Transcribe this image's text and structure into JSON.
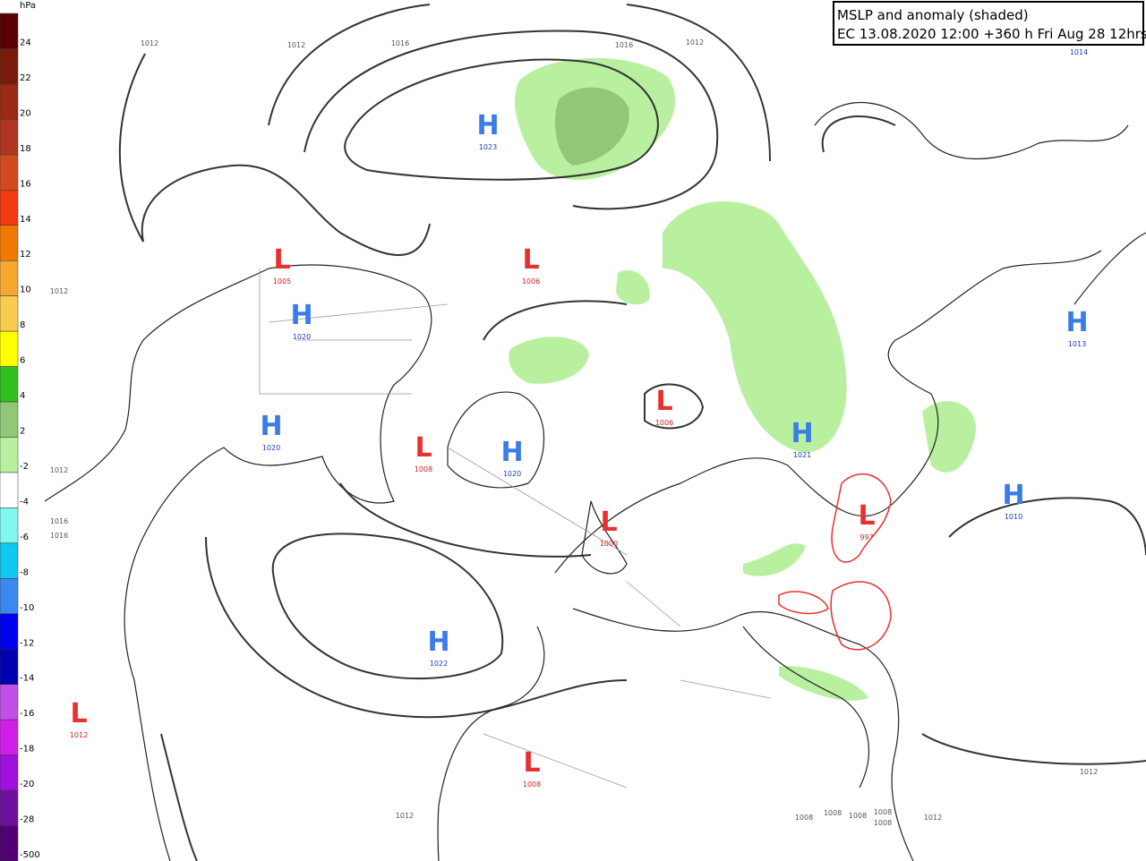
{
  "header": {
    "lines": [
      "MSLP and anomaly (shaded)",
      "EC 13.08.2020 12:00 +360 h Fri Aug 28 12hrs"
    ]
  },
  "colorbar": {
    "unit": "hPa",
    "labels": [
      "24",
      "22",
      "20",
      "18",
      "16",
      "14",
      "12",
      "10",
      "8",
      "6",
      "4",
      "2",
      "-2",
      "-4",
      "-6",
      "-8",
      "-10",
      "-12",
      "-14",
      "-16",
      "-18",
      "-20",
      "-28",
      "-500"
    ],
    "colors": [
      "#5a0000",
      "#7a1a0a",
      "#9a2a15",
      "#b03520",
      "#d04a20",
      "#f03a10",
      "#f07a00",
      "#f4a830",
      "#f8cc50",
      "#ffff00",
      "#30c020",
      "#90c878",
      "#b8f0a0",
      "#ffffff",
      "#80f8f0",
      "#10c8f0",
      "#3a88f0",
      "#0000f0",
      "#0000b0",
      "#c050e8",
      "#d020e8",
      "#a010e0",
      "#7010a0",
      "#500070"
    ]
  },
  "centers": [
    {
      "type": "H",
      "value": "1023"
    },
    {
      "type": "L",
      "value": "1005"
    },
    {
      "type": "L",
      "value": "1006"
    },
    {
      "type": "H",
      "value": "1020"
    },
    {
      "type": "H",
      "value": "1020"
    },
    {
      "type": "L",
      "value": "1008"
    },
    {
      "type": "H",
      "value": "1020"
    },
    {
      "type": "L",
      "value": "1006"
    },
    {
      "type": "L",
      "value": "1000"
    },
    {
      "type": "H",
      "value": "1021"
    },
    {
      "type": "L",
      "value": "997"
    },
    {
      "type": "H",
      "value": "1010"
    },
    {
      "type": "H",
      "value": "1013"
    },
    {
      "type": "H",
      "value": "1022"
    },
    {
      "type": "L",
      "value": "1012"
    },
    {
      "type": "L",
      "value": "1008"
    }
  ],
  "isobar_labels": [
    "1012",
    "1012",
    "1016",
    "1016",
    "1012",
    "1014",
    "1012",
    "1012",
    "1016",
    "1016",
    "1012",
    "1008",
    "1008",
    "1008",
    "1008",
    "1008",
    "1012",
    "1012"
  ]
}
